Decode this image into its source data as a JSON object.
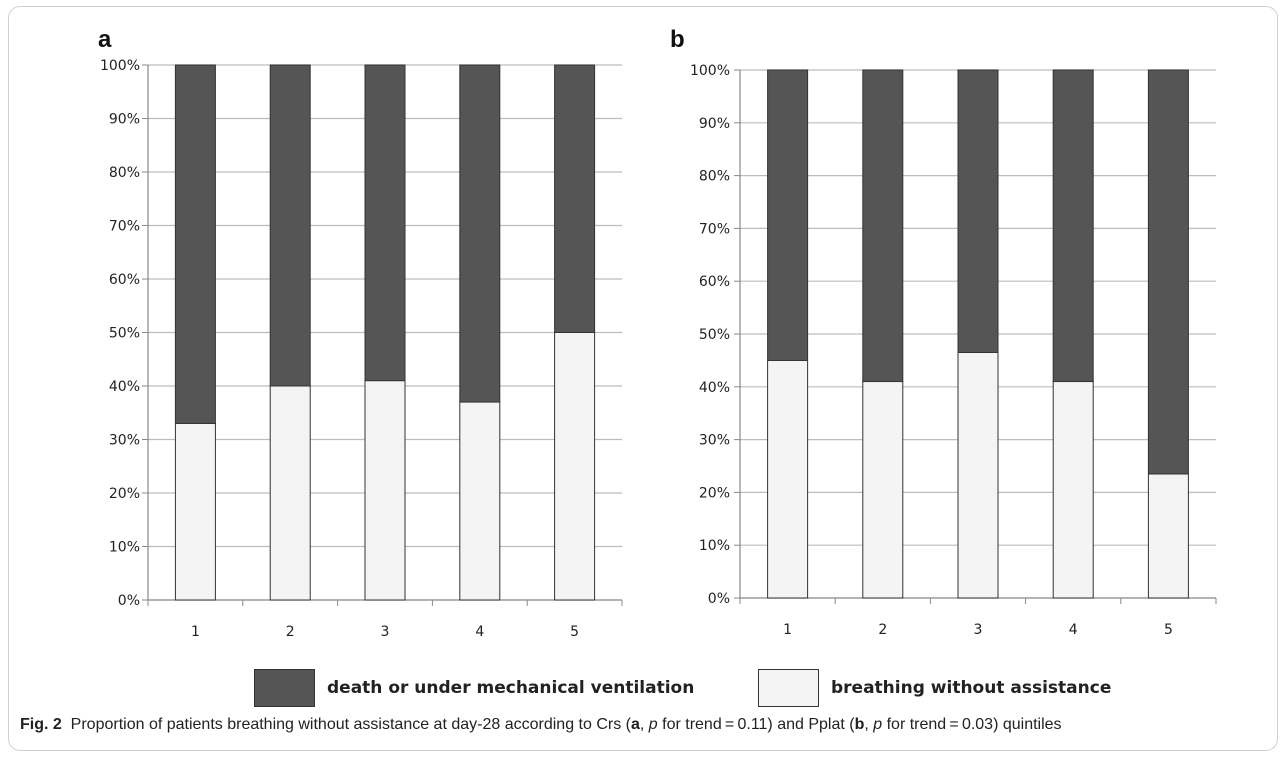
{
  "chart_data": [
    {
      "type": "bar",
      "stacked": true,
      "panel_label": "a",
      "categories": [
        "1",
        "2",
        "3",
        "4",
        "5"
      ],
      "series": [
        {
          "name": "breathing without assistance",
          "values": [
            33,
            40,
            41,
            37,
            50
          ]
        },
        {
          "name": "death or under mechanical ventilation",
          "values": [
            67,
            60,
            59,
            63,
            50
          ]
        }
      ],
      "ylim": [
        0,
        100
      ],
      "yticks": [
        "0%",
        "10%",
        "20%",
        "30%",
        "40%",
        "50%",
        "60%",
        "70%",
        "80%",
        "90%",
        "100%"
      ],
      "grid": true
    },
    {
      "type": "bar",
      "stacked": true,
      "panel_label": "b",
      "categories": [
        "1",
        "2",
        "3",
        "4",
        "5"
      ],
      "series": [
        {
          "name": "breathing without assistance",
          "values": [
            45,
            41,
            46.5,
            41,
            23.5
          ]
        },
        {
          "name": "death or under mechanical ventilation",
          "values": [
            55,
            59,
            53.5,
            59,
            76.5
          ]
        }
      ],
      "ylim": [
        0,
        100
      ],
      "yticks": [
        "0%",
        "10%",
        "20%",
        "30%",
        "40%",
        "50%",
        "60%",
        "70%",
        "80%",
        "90%",
        "100%"
      ],
      "grid": true
    }
  ],
  "legend": {
    "items": [
      {
        "label": "death or under mechanical ventilation",
        "color": "#555555"
      },
      {
        "label": "breathing without assistance",
        "color": "#f4f4f4"
      }
    ]
  },
  "caption": {
    "fig_label": "Fig. 2",
    "text_part1": "Proportion of patients breathing without assistance at day-28 according to Crs (",
    "panel_a": "a",
    "text_part2": ", ",
    "p_a": "p",
    "text_part3": " for trend = 0.11) and Pplat (",
    "panel_b": "b",
    "text_part4": ", ",
    "p_b": "p",
    "text_part5": " for trend = 0.03) quintiles"
  },
  "colors": {
    "dark": "#555555",
    "light": "#f4f4f4",
    "grid": "#bdbdbd",
    "axis": "#888888"
  }
}
